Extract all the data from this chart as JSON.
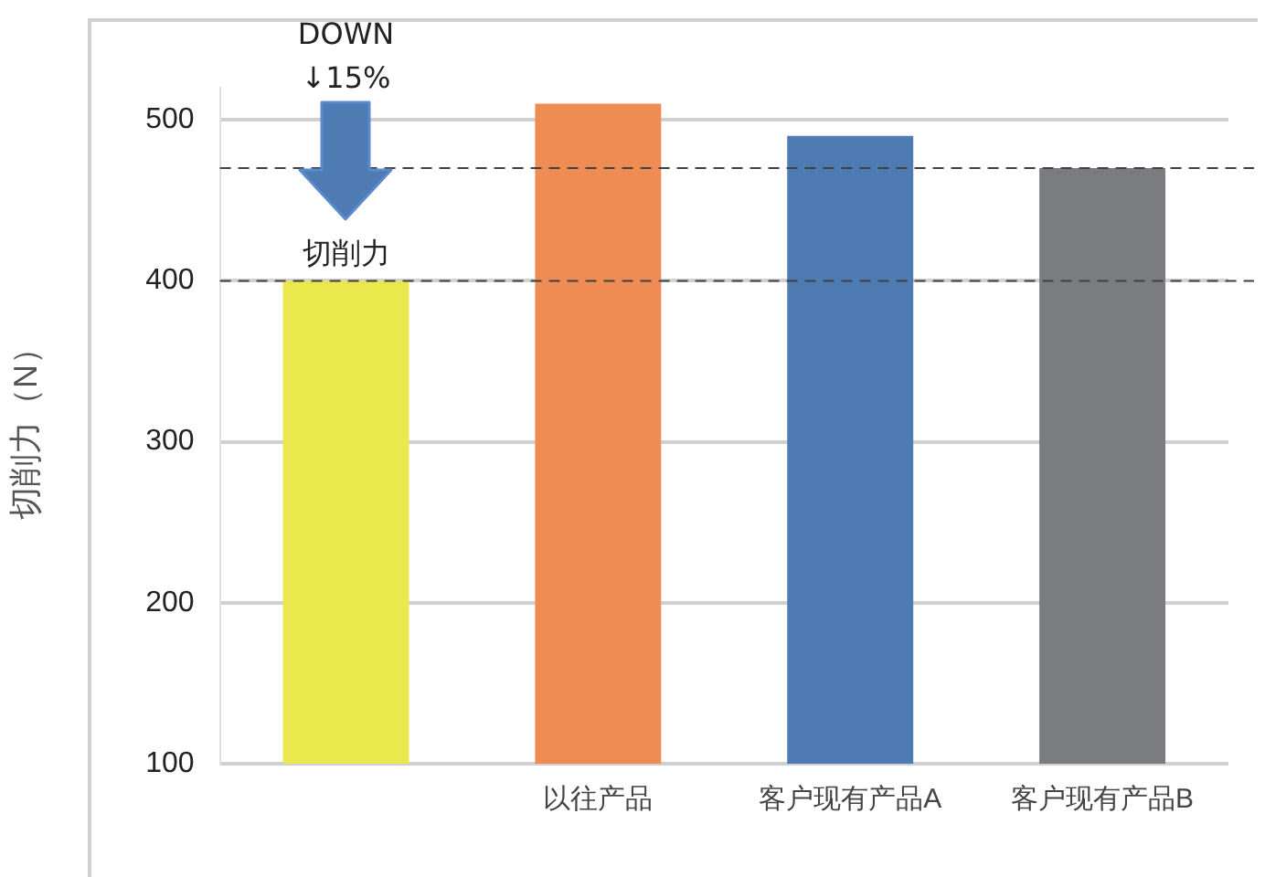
{
  "chart_data": {
    "type": "bar",
    "ylabel": "切削力（N）",
    "categories": [
      null,
      "以往产品",
      "客户现有产品A",
      "客户现有产品B"
    ],
    "values": [
      400,
      510,
      490,
      470
    ],
    "colors": [
      "#eae84d",
      "#ee8c53",
      "#4d7bb2",
      "#7b7c80"
    ],
    "ylim": [
      100,
      520
    ],
    "yticks": [
      100,
      200,
      300,
      400,
      500
    ],
    "grid": "y",
    "legend": false,
    "ref_lines": [
      {
        "axis": "y",
        "value": 400,
        "color": "#404040",
        "line_style": "dashed"
      },
      {
        "axis": "y",
        "value": 470,
        "color": "#404040",
        "line_style": "dashed"
      }
    ],
    "annotations": [
      "DOWN\n↓15%",
      "切削力"
    ]
  }
}
